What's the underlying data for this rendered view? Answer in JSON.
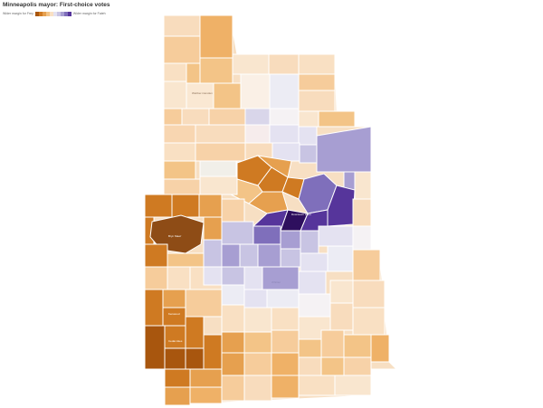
{
  "title": "Minneapolis mayor: First-choice votes",
  "legend": {
    "left_label": "Wider margin for Frey",
    "right_label": "Wider margin for Fateh",
    "scale_colors": [
      "#a8560e",
      "#cf7a22",
      "#e6a04f",
      "#f3c487",
      "#f9e0c3",
      "#e4e2f1",
      "#c8c4e3",
      "#a79ed2",
      "#7f6fbb",
      "#56359b"
    ]
  },
  "map_labels": [
    "Webber-Camden",
    "Bryn Mawr",
    "Downtown West",
    "Whittier",
    "Kenwood",
    "Cedar-Isles"
  ]
}
